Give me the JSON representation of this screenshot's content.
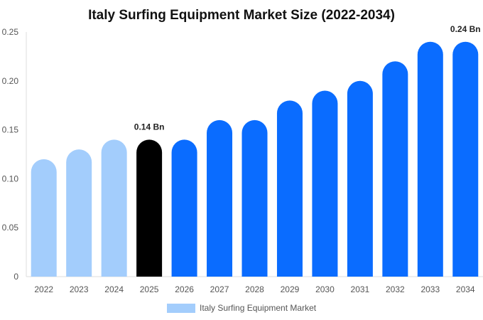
{
  "chart_data": {
    "type": "bar",
    "title": "Italy Surfing Equipment Market Size (2022-2034)",
    "categories": [
      "2022",
      "2023",
      "2024",
      "2025",
      "2026",
      "2027",
      "2028",
      "2029",
      "2030",
      "2031",
      "2032",
      "2033",
      "2034"
    ],
    "series": [
      {
        "name": "Italy Surfing Equipment Market",
        "values": [
          0.12,
          0.13,
          0.14,
          0.14,
          0.14,
          0.16,
          0.16,
          0.18,
          0.19,
          0.2,
          0.22,
          0.24,
          0.24
        ]
      }
    ],
    "bar_colors": [
      "#a3cdfc",
      "#a3cdfc",
      "#a3cdfc",
      "#000000",
      "#0a6cff",
      "#0a6cff",
      "#0a6cff",
      "#0a6cff",
      "#0a6cff",
      "#0a6cff",
      "#0a6cff",
      "#0a6cff",
      "#0a6cff"
    ],
    "data_labels": [
      {
        "index": 3,
        "text": "0.14 Bn"
      },
      {
        "index": 12,
        "text": "0.24 Bn"
      }
    ],
    "yticks": [
      {
        "value": 0,
        "label": "0"
      },
      {
        "value": 0.05,
        "label": "0.05"
      },
      {
        "value": 0.1,
        "label": "0.10"
      },
      {
        "value": 0.15,
        "label": "0.15"
      },
      {
        "value": 0.2,
        "label": "0.20"
      },
      {
        "value": 0.25,
        "label": "0.25"
      }
    ],
    "ylim": [
      0,
      0.25
    ],
    "xlabel": "",
    "ylabel": "",
    "grid": false,
    "legend": {
      "position": "bottom",
      "label": "Italy Surfing Equipment Market",
      "color": "#a3cdfc"
    }
  }
}
